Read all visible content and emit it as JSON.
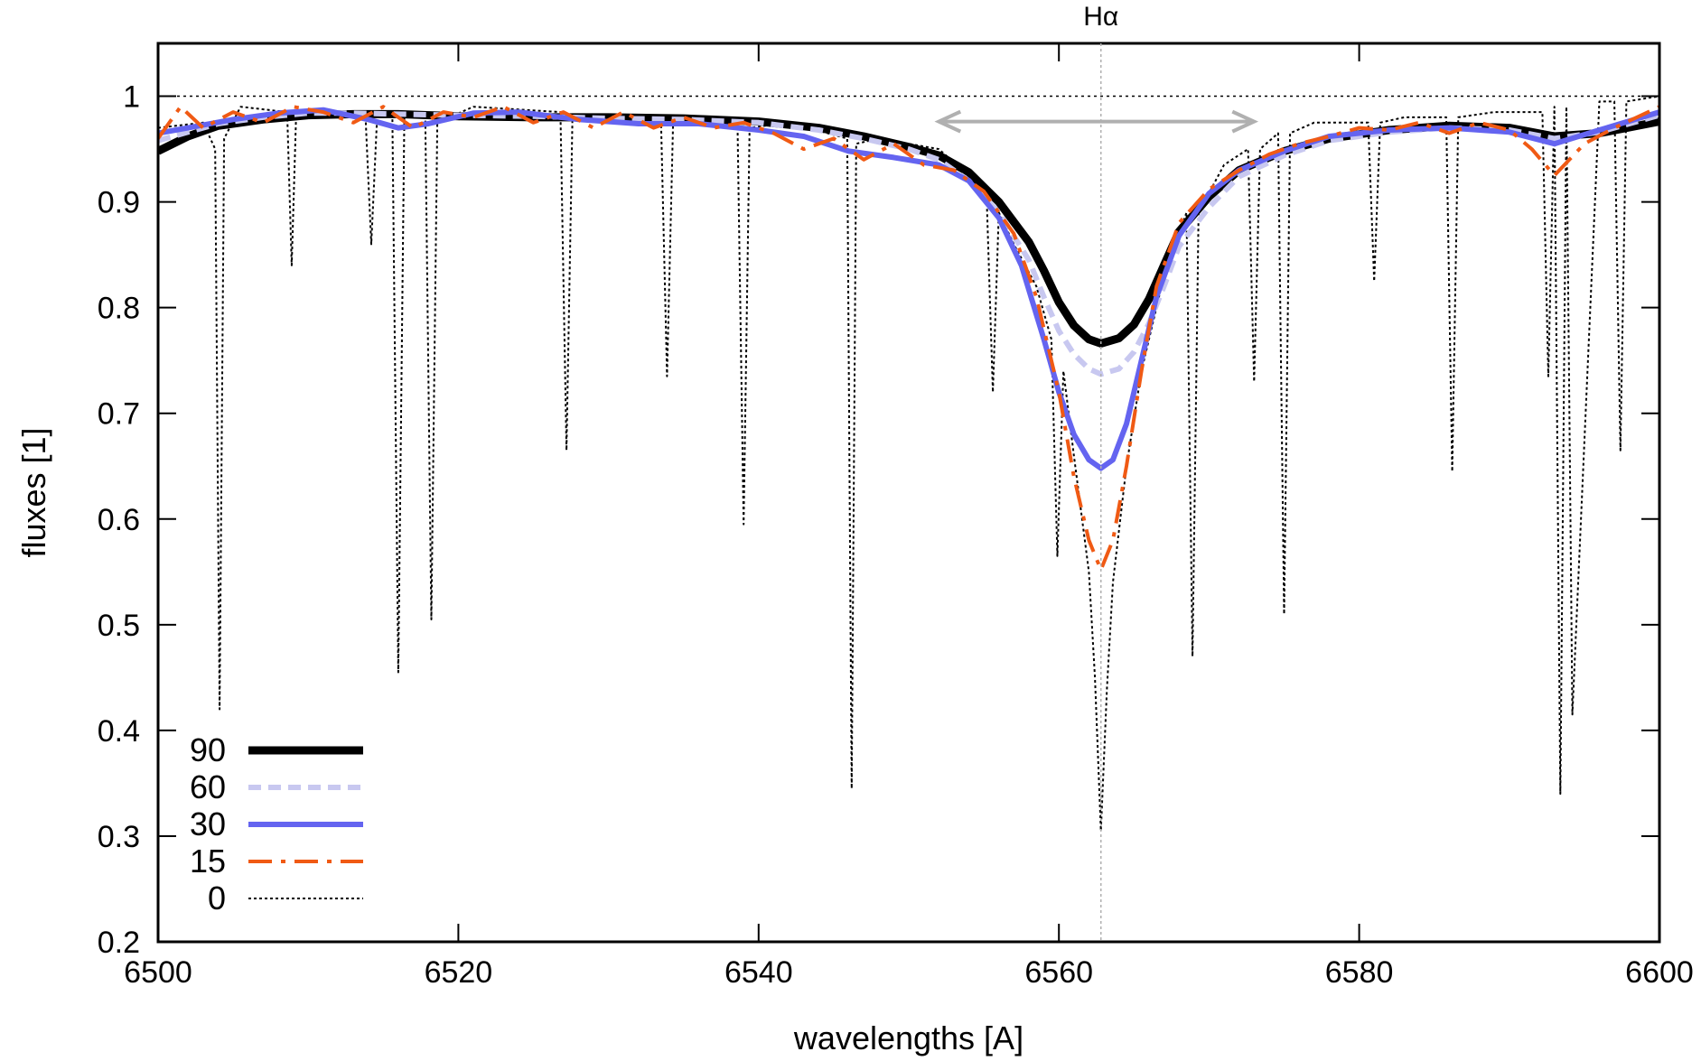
{
  "chart_data": {
    "type": "line",
    "xlabel": "wavelengths [A]",
    "ylabel": "fluxes [1]",
    "xlim": [
      6500,
      6600
    ],
    "ylim": [
      0.2,
      1.05
    ],
    "xticks": [
      6500,
      6520,
      6540,
      6560,
      6580,
      6600
    ],
    "yticks": [
      0.2,
      0.3,
      0.4,
      0.5,
      0.6,
      0.7,
      0.8,
      0.9,
      1
    ],
    "ytick_labels": [
      "0.2",
      "0.3",
      "0.4",
      "0.5",
      "0.6",
      "0.7",
      "0.8",
      "0.9",
      "1"
    ],
    "grid": false,
    "legend_position": "bottom-left",
    "annotation": {
      "label": "Hα",
      "line_x": 6562.8,
      "arrow_from": 6552,
      "arrow_to": 6573,
      "arrow_y": 0.976,
      "reference_y": 1.0,
      "color": "#b0b0b0"
    },
    "colors": {
      "s90": "#000000",
      "s60": "#c8c8f0",
      "s30": "#6464f0",
      "s15": "#f05a14",
      "s0": "#000000"
    },
    "series": [
      {
        "name": "90",
        "x": [
          6500,
          6502,
          6504,
          6507,
          6510,
          6513,
          6516,
          6520,
          6525,
          6530,
          6535,
          6540,
          6544,
          6547,
          6550,
          6552,
          6554,
          6556,
          6558,
          6559,
          6560,
          6561,
          6562,
          6562.8,
          6564,
          6565,
          6566,
          6567,
          6568,
          6570,
          6572,
          6575,
          6578,
          6582,
          6586,
          6590,
          6593,
          6596,
          6600
        ],
        "y": [
          0.948,
          0.962,
          0.972,
          0.978,
          0.982,
          0.983,
          0.983,
          0.981,
          0.98,
          0.98,
          0.979,
          0.976,
          0.97,
          0.962,
          0.952,
          0.944,
          0.928,
          0.9,
          0.862,
          0.835,
          0.805,
          0.783,
          0.77,
          0.766,
          0.771,
          0.784,
          0.808,
          0.84,
          0.872,
          0.905,
          0.93,
          0.948,
          0.96,
          0.968,
          0.972,
          0.97,
          0.962,
          0.965,
          0.976
        ]
      },
      {
        "name": "60",
        "x": [
          6500,
          6502,
          6504,
          6507,
          6510,
          6513,
          6516,
          6520,
          6525,
          6530,
          6535,
          6540,
          6544,
          6547,
          6550,
          6552,
          6554,
          6556,
          6558,
          6559,
          6560,
          6561,
          6562,
          6562.8,
          6564,
          6565,
          6566,
          6567,
          6568,
          6570,
          6572,
          6575,
          6578,
          6582,
          6586,
          6590,
          6593,
          6596,
          6600
        ],
        "y": [
          0.958,
          0.966,
          0.974,
          0.98,
          0.984,
          0.984,
          0.983,
          0.982,
          0.981,
          0.979,
          0.978,
          0.975,
          0.968,
          0.96,
          0.95,
          0.94,
          0.92,
          0.89,
          0.845,
          0.81,
          0.778,
          0.756,
          0.742,
          0.737,
          0.742,
          0.758,
          0.785,
          0.82,
          0.858,
          0.895,
          0.924,
          0.944,
          0.958,
          0.966,
          0.97,
          0.968,
          0.96,
          0.966,
          0.982
        ]
      },
      {
        "name": "30",
        "x": [
          6500,
          6502,
          6505,
          6508,
          6511,
          6514,
          6516,
          6518,
          6521,
          6524,
          6528,
          6532,
          6536,
          6540,
          6543,
          6546,
          6549,
          6552,
          6554,
          6556,
          6557.5,
          6559,
          6560,
          6561,
          6562,
          6562.8,
          6563.6,
          6564.5,
          6565.5,
          6566.5,
          6568,
          6570,
          6572,
          6575,
          6578,
          6582,
          6586,
          6590,
          6593,
          6596,
          6600
        ],
        "y": [
          0.965,
          0.97,
          0.978,
          0.984,
          0.987,
          0.978,
          0.97,
          0.974,
          0.984,
          0.985,
          0.978,
          0.974,
          0.974,
          0.968,
          0.962,
          0.948,
          0.942,
          0.935,
          0.92,
          0.885,
          0.84,
          0.77,
          0.72,
          0.68,
          0.656,
          0.648,
          0.656,
          0.69,
          0.75,
          0.81,
          0.868,
          0.908,
          0.93,
          0.948,
          0.962,
          0.968,
          0.97,
          0.966,
          0.955,
          0.968,
          0.985
        ]
      },
      {
        "name": "15",
        "x": [
          6500,
          6501.5,
          6503,
          6505,
          6507,
          6509,
          6511,
          6513,
          6515,
          6517,
          6519,
          6521,
          6523,
          6525,
          6527,
          6529,
          6531,
          6533,
          6535,
          6537,
          6539,
          6541,
          6543,
          6545,
          6547,
          6549,
          6551,
          6553,
          6555,
          6557,
          6558.5,
          6560,
          6561,
          6562,
          6562.8,
          6563.6,
          6564.5,
          6565.5,
          6566.5,
          6568,
          6570,
          6572,
          6574,
          6576,
          6578,
          6580,
          6582,
          6584,
          6586,
          6588,
          6590,
          6591.5,
          6593,
          6595,
          6597,
          6600
        ],
        "y": [
          0.96,
          0.99,
          0.97,
          0.985,
          0.975,
          0.99,
          0.985,
          0.975,
          0.99,
          0.97,
          0.985,
          0.98,
          0.99,
          0.975,
          0.985,
          0.97,
          0.985,
          0.97,
          0.98,
          0.97,
          0.975,
          0.965,
          0.95,
          0.96,
          0.94,
          0.955,
          0.935,
          0.93,
          0.91,
          0.87,
          0.81,
          0.72,
          0.64,
          0.58,
          0.552,
          0.58,
          0.65,
          0.74,
          0.82,
          0.88,
          0.912,
          0.93,
          0.945,
          0.955,
          0.962,
          0.97,
          0.968,
          0.975,
          0.965,
          0.975,
          0.968,
          0.95,
          0.925,
          0.955,
          0.97,
          0.99
        ]
      },
      {
        "name": "0",
        "x": [
          6500,
          6503,
          6503.8,
          6504.1,
          6504.4,
          6505.5,
          6508.6,
          6508.9,
          6509.2,
          6513.8,
          6514.2,
          6514.6,
          6515.6,
          6516,
          6516.4,
          6517.8,
          6518.2,
          6518.6,
          6521,
          6526.8,
          6527.2,
          6527.6,
          6530,
          6533.5,
          6533.9,
          6534.3,
          6538.6,
          6539,
          6539.4,
          6542,
          6545.9,
          6546.2,
          6546.5,
          6548,
          6552,
          6554,
          6555.2,
          6555.6,
          6556,
          6557,
          6558.5,
          6559.5,
          6559.9,
          6560.3,
          6561,
          6562,
          6562.4,
          6562.8,
          6563.2,
          6563.6,
          6564.5,
          6565.5,
          6567,
          6568.5,
          6568.9,
          6569.3,
          6571,
          6572.6,
          6573,
          6573.4,
          6574.6,
          6575,
          6575.4,
          6577,
          6580.6,
          6581,
          6581.4,
          6583,
          6585.8,
          6586.2,
          6586.6,
          6589,
          6592.2,
          6592.6,
          6593,
          6593.4,
          6593.8,
          6594.2,
          6596,
          6597,
          6597.4,
          6597.8,
          6600
        ],
        "y": [
          0.97,
          0.975,
          0.95,
          0.42,
          0.96,
          0.99,
          0.985,
          0.84,
          0.985,
          0.985,
          0.86,
          0.985,
          0.985,
          0.455,
          0.98,
          0.98,
          0.505,
          0.975,
          0.99,
          0.985,
          0.665,
          0.98,
          0.975,
          0.975,
          0.735,
          0.975,
          0.97,
          0.595,
          0.97,
          0.975,
          0.96,
          0.345,
          0.955,
          0.96,
          0.95,
          0.925,
          0.9,
          0.72,
          0.89,
          0.86,
          0.82,
          0.77,
          0.565,
          0.74,
          0.66,
          0.55,
          0.45,
          0.305,
          0.44,
          0.54,
          0.65,
          0.74,
          0.83,
          0.89,
          0.47,
          0.89,
          0.935,
          0.95,
          0.73,
          0.95,
          0.965,
          0.51,
          0.965,
          0.975,
          0.975,
          0.825,
          0.975,
          0.98,
          0.98,
          0.645,
          0.98,
          0.985,
          0.985,
          0.735,
          0.99,
          0.34,
          0.99,
          0.415,
          0.995,
          0.995,
          0.665,
          0.995,
          1.0
        ]
      }
    ]
  }
}
